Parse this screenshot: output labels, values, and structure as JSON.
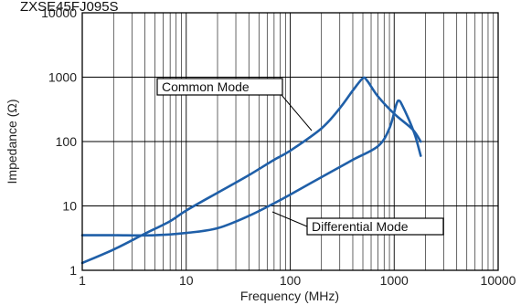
{
  "header": {
    "title": "ZXSE45FJ095S"
  },
  "chart_data": {
    "type": "line",
    "title": "",
    "xlabel": "Frequency (MHz)",
    "ylabel": "Impedance (Ω)",
    "xscale": "log",
    "yscale": "log",
    "xlim": [
      1,
      10000
    ],
    "ylim": [
      1,
      10000
    ],
    "x_ticks": [
      "1",
      "10",
      "100",
      "1000",
      "10000"
    ],
    "y_ticks": [
      "1",
      "10",
      "100",
      "1000",
      "10000"
    ],
    "grid": true,
    "series_color": "#1f5fa8",
    "series": [
      {
        "name": "Common Mode",
        "points": [
          [
            1,
            1.3
          ],
          [
            2,
            2.1
          ],
          [
            4,
            3.7
          ],
          [
            7,
            5.8
          ],
          [
            10,
            8.5
          ],
          [
            20,
            16
          ],
          [
            40,
            30
          ],
          [
            70,
            52
          ],
          [
            100,
            72
          ],
          [
            200,
            160
          ],
          [
            300,
            330
          ],
          [
            400,
            620
          ],
          [
            500,
            960
          ],
          [
            550,
            880
          ],
          [
            700,
            500
          ],
          [
            1000,
            270
          ],
          [
            1500,
            155
          ],
          [
            1800,
            100
          ]
        ]
      },
      {
        "name": "Differential Mode",
        "points": [
          [
            1,
            3.5
          ],
          [
            2,
            3.5
          ],
          [
            5,
            3.5
          ],
          [
            10,
            3.8
          ],
          [
            20,
            4.5
          ],
          [
            40,
            7
          ],
          [
            70,
            11
          ],
          [
            100,
            15
          ],
          [
            200,
            28
          ],
          [
            400,
            52
          ],
          [
            700,
            85
          ],
          [
            900,
            160
          ],
          [
            1050,
            380
          ],
          [
            1120,
            430
          ],
          [
            1200,
            360
          ],
          [
            1400,
            210
          ],
          [
            1600,
            120
          ],
          [
            1800,
            60
          ]
        ]
      }
    ],
    "annotations": [
      {
        "text": "Common Mode"
      },
      {
        "text": "Differential Mode"
      }
    ]
  }
}
